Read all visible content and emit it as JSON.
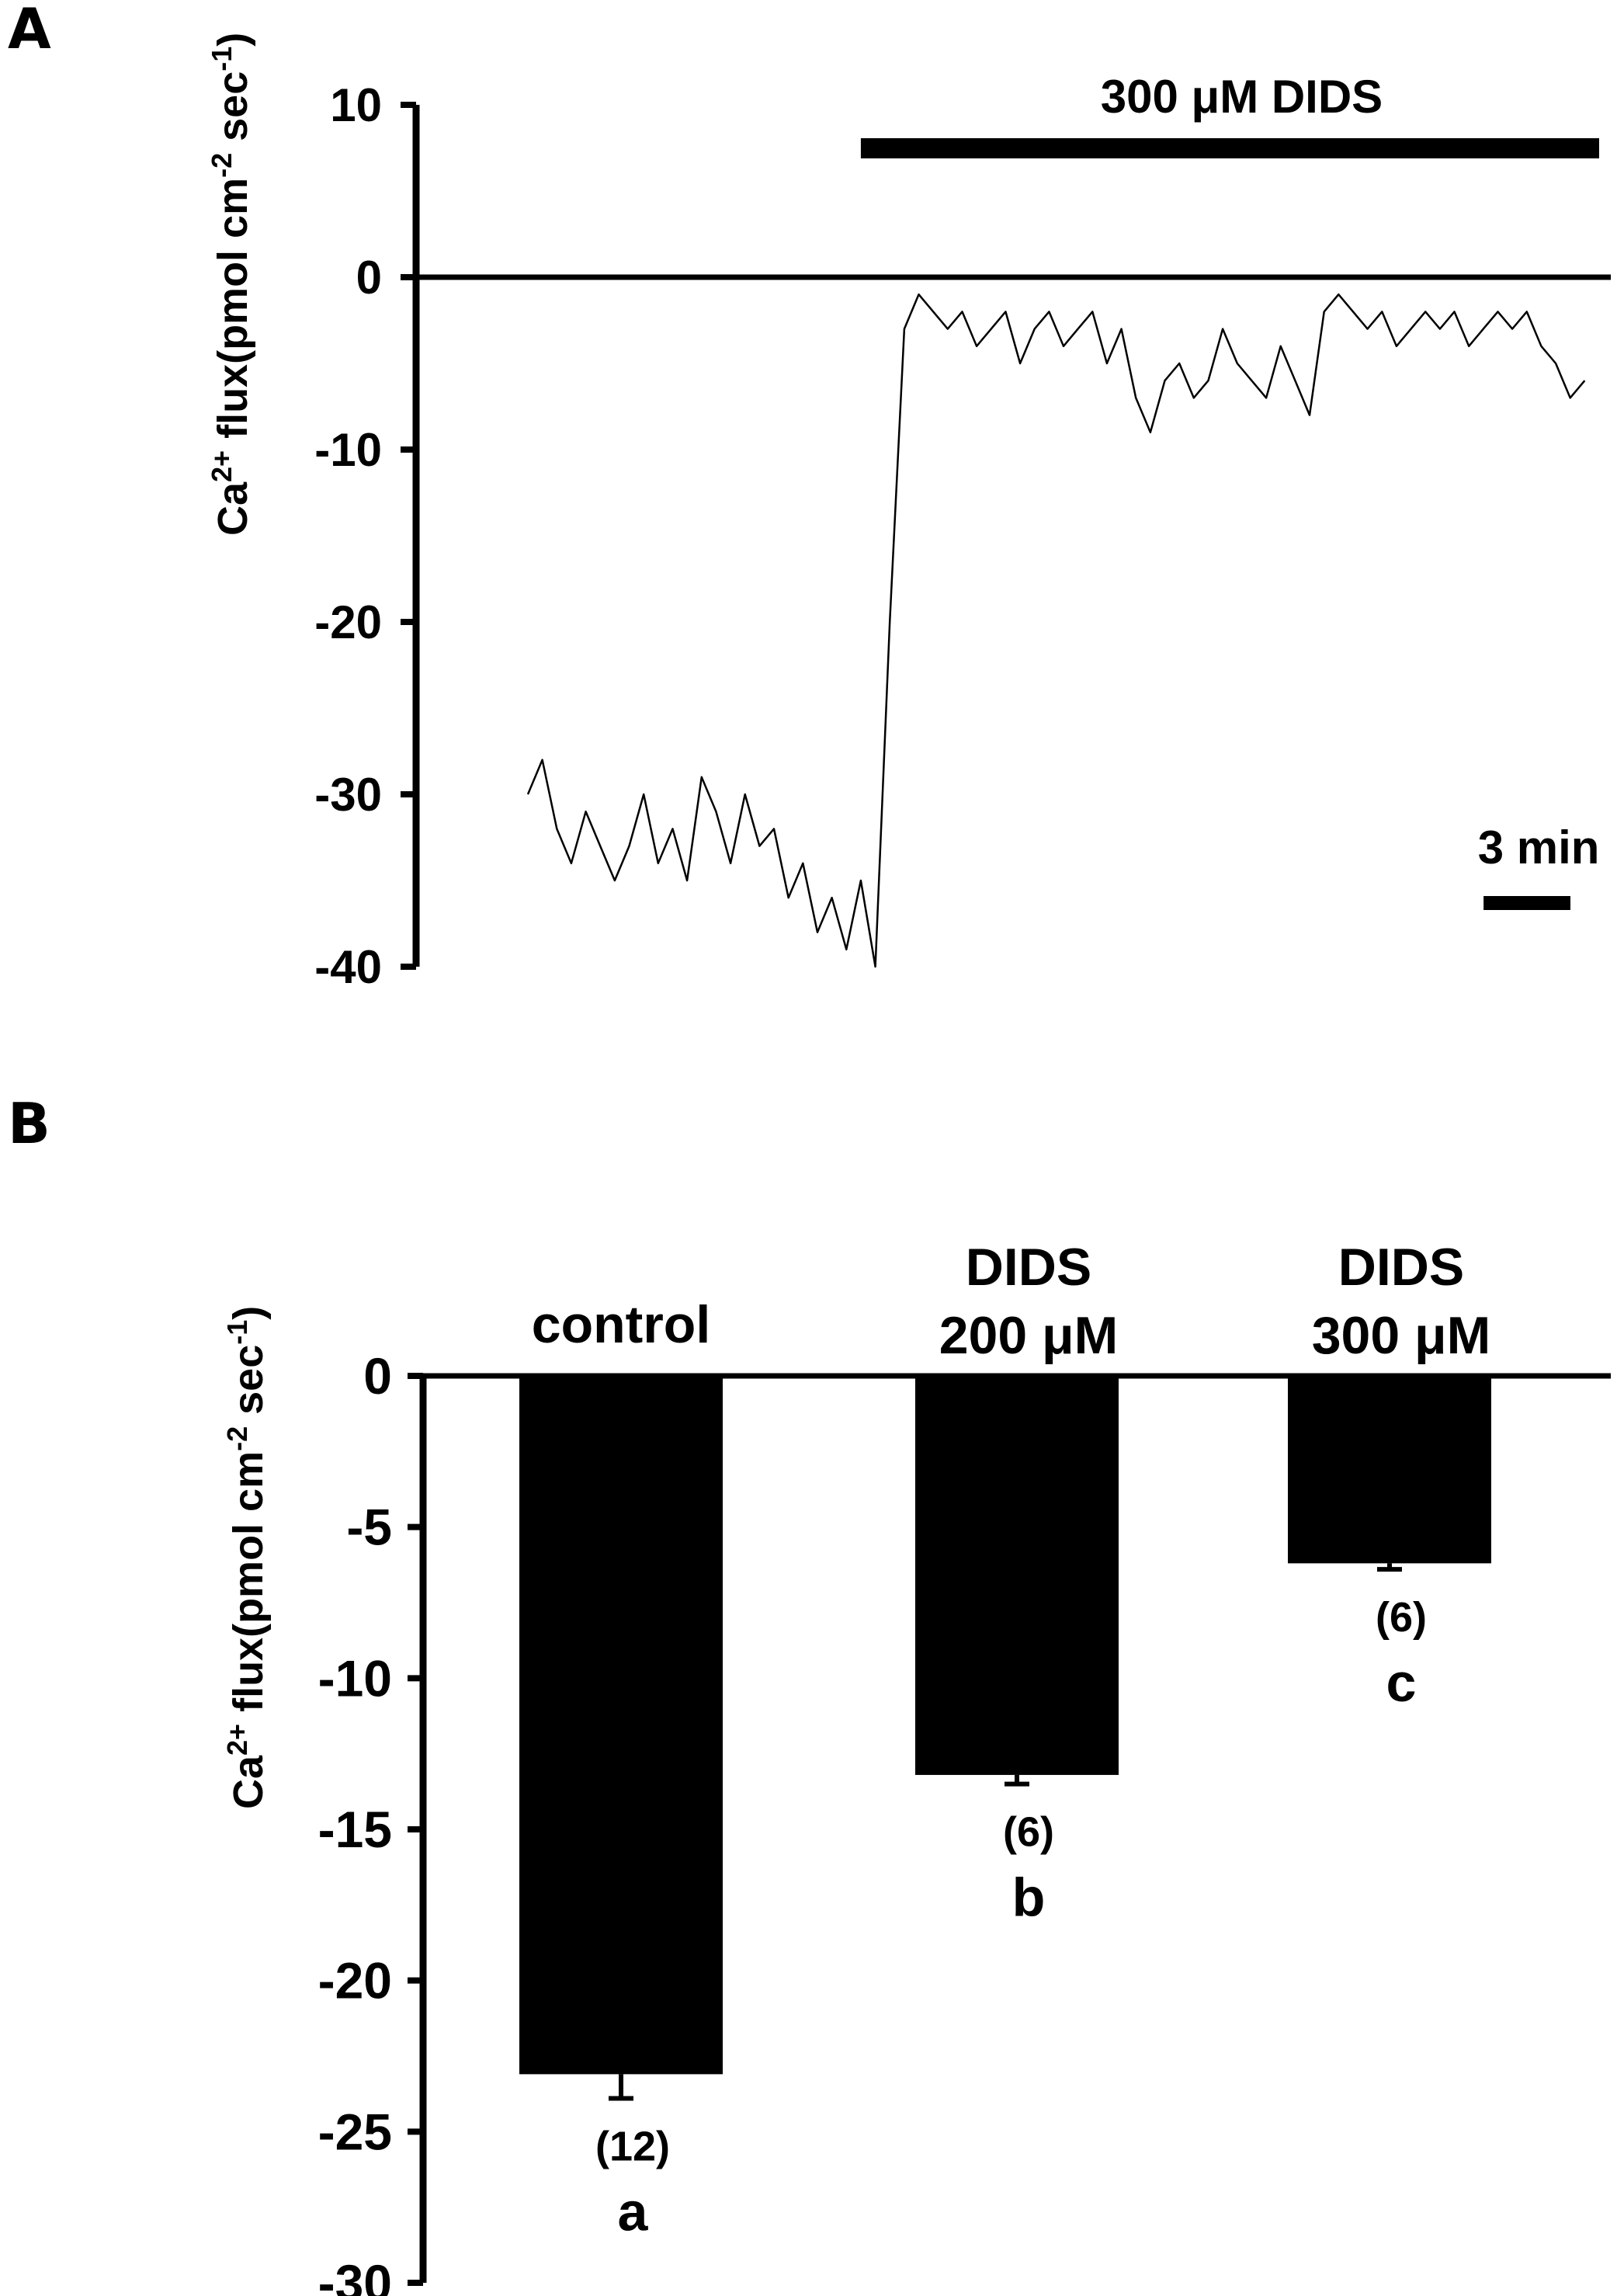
{
  "panel_a": {
    "letter": "A",
    "treatment_label": "300 μM DIDS",
    "scale_bar_label": "3 min",
    "ylabel_main": "Ca",
    "ylabel_sup1": "2+",
    "ylabel_mid": " flux(pmol cm",
    "ylabel_sup2": "-2",
    "ylabel_mid2": " sec",
    "ylabel_sup3": "-1",
    "ylabel_end": ")"
  },
  "panel_b": {
    "letter": "B",
    "ylabel_main": "Ca",
    "ylabel_sup1": "2+",
    "ylabel_mid": " flux(pmol cm",
    "ylabel_sup2": "-2",
    "ylabel_mid2": " sec",
    "ylabel_sup3": "-1",
    "ylabel_end": ")"
  },
  "chart_data": [
    {
      "type": "line",
      "title": "",
      "xlabel": "",
      "ylabel": "Ca2+ flux(pmol cm-2 sec-1)",
      "ylim": [
        -40,
        10
      ],
      "yticks": [
        "10",
        "0",
        "-10",
        "-20",
        "-30",
        "-40"
      ],
      "ytick_values": [
        10,
        0,
        -10,
        -20,
        -30,
        -40
      ],
      "x_unit": "min",
      "xlim": [
        0,
        37
      ],
      "treatment": {
        "label": "300 μM DIDS",
        "start_min": 11.5,
        "end_min": 37
      },
      "scale_bar_min": 3,
      "series": [
        {
          "x": [
            0,
            0.5,
            1,
            1.5,
            2,
            2.5,
            3,
            3.5,
            4,
            4.5,
            5,
            5.5,
            6,
            6.5,
            7,
            7.5,
            8,
            8.5,
            9,
            9.5,
            10,
            10.5,
            11,
            11.5,
            12,
            12.5,
            13,
            13.5,
            14,
            14.5,
            15,
            15.5,
            16,
            16.5,
            17,
            17.5,
            18,
            18.5,
            19,
            19.5,
            20,
            20.5,
            21,
            21.5,
            22,
            22.5,
            23,
            23.5,
            24,
            24.5,
            25,
            25.5,
            26,
            26.5,
            27,
            27.5,
            28,
            28.5,
            29,
            29.5,
            30,
            30.5,
            31,
            31.5,
            32,
            32.5,
            33,
            33.5,
            34,
            34.5,
            35,
            35.5,
            36,
            36.5
          ],
          "y": [
            -30,
            -28,
            -32,
            -34,
            -31,
            -33,
            -35,
            -33,
            -30,
            -34,
            -32,
            -35,
            -29,
            -31,
            -34,
            -30,
            -33,
            -32,
            -36,
            -34,
            -38,
            -36,
            -39,
            -35,
            -40,
            -20,
            -3,
            -1,
            -2,
            -3,
            -2,
            -4,
            -3,
            -2,
            -5,
            -3,
            -2,
            -4,
            -3,
            -2,
            -5,
            -3,
            -7,
            -9,
            -6,
            -5,
            -7,
            -6,
            -3,
            -5,
            -6,
            -7,
            -4,
            -6,
            -8,
            -2,
            -1,
            -2,
            -3,
            -2,
            -4,
            -3,
            -2,
            -3,
            -2,
            -4,
            -3,
            -2,
            -3,
            -2,
            -4,
            -5,
            -7,
            -6
          ]
        }
      ]
    },
    {
      "type": "bar",
      "title": "",
      "xlabel": "",
      "ylabel": "Ca2+ flux(pmol cm-2 sec-1)",
      "ylim": [
        -30,
        0
      ],
      "yticks": [
        "0",
        "-5",
        "-10",
        "-15",
        "-20",
        "-25",
        "-30"
      ],
      "ytick_values": [
        0,
        -5,
        -10,
        -15,
        -20,
        -25,
        -30
      ],
      "categories": [
        {
          "line1": "control",
          "line2": ""
        },
        {
          "line1": "DIDS",
          "line2": "200 μM"
        },
        {
          "line1": "DIDS",
          "line2": "300 μM"
        }
      ],
      "values": [
        -23.1,
        -13.2,
        -6.2
      ],
      "errors": [
        0.8,
        0.3,
        0.2
      ],
      "n_labels": [
        "(12)",
        "(6)",
        "(6)"
      ],
      "significance": [
        "a",
        "b",
        "c"
      ]
    }
  ]
}
